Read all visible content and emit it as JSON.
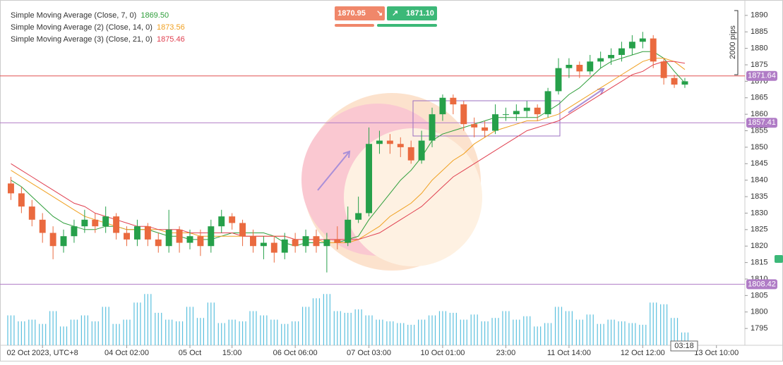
{
  "chart_data": {
    "type": "candlestick",
    "categories": [
      null,
      null,
      null,
      "02 Oct 2023, UTC+8",
      null,
      null,
      null,
      null,
      null,
      null,
      null,
      "04 Oct 02:00",
      null,
      null,
      null,
      null,
      null,
      "05 Oct",
      null,
      null,
      null,
      "15:00",
      null,
      null,
      null,
      null,
      null,
      "06 Oct 06:00",
      null,
      null,
      null,
      null,
      null,
      null,
      "07 Oct 03:00",
      null,
      null,
      null,
      null,
      null,
      null,
      "10 Oct 01:00",
      null,
      null,
      null,
      null,
      null,
      "23:00",
      null,
      null,
      null,
      null,
      null,
      "11 Oct 14:00",
      null,
      null,
      null,
      null,
      null,
      null,
      "12 Oct 12:00",
      null,
      null,
      null,
      null,
      null,
      null,
      "13 Oct 10:00",
      null,
      null
    ],
    "open": [
      1839,
      1836,
      1832,
      1828,
      1824,
      1820,
      1823,
      1826,
      1828,
      1826,
      1829,
      1824,
      1822,
      1826,
      1822,
      1820,
      1825,
      1821,
      1823,
      1820,
      1826,
      1829,
      1827,
      1823,
      1820,
      1821,
      1818,
      1822,
      1820,
      1823,
      1820,
      1822,
      1821,
      1828,
      1830,
      1851,
      1852,
      1851,
      1850,
      1846,
      1852,
      1860,
      1865,
      1863,
      1857,
      1856,
      1855,
      1860,
      1860,
      1861,
      1862,
      1860,
      1867,
      1874,
      1875,
      1873,
      1876,
      1877,
      1878,
      1880,
      1882,
      1883,
      1876,
      1871,
      1869,
      null,
      null,
      null,
      null,
      null
    ],
    "high": [
      1841,
      1838,
      1834,
      1830,
      1826,
      1825,
      1828,
      1831,
      1830,
      1832,
      1830,
      1826,
      1828,
      1827,
      1824,
      1831,
      1826,
      1825,
      1825,
      1828,
      1831,
      1830,
      1828,
      1825,
      1823,
      1823,
      1824,
      1824,
      1825,
      1825,
      1824,
      1826,
      1832,
      1835,
      1856,
      1855,
      1854,
      1853,
      1852,
      1855,
      1862,
      1866,
      1866,
      1864,
      1859,
      1858,
      1863,
      1862,
      1863,
      1864,
      1863,
      1868,
      1877,
      1877,
      1876,
      1878,
      1879,
      1880,
      1882,
      1884,
      1885,
      1884,
      1877,
      1872,
      1871,
      null,
      null,
      null,
      null,
      null
    ],
    "low": [
      1834,
      1830,
      1826,
      1821,
      1816,
      1818,
      1821,
      1824,
      1824,
      1824,
      1822,
      1820,
      1820,
      1820,
      1818,
      1818,
      1818,
      1819,
      1817,
      1818,
      1824,
      1825,
      1820,
      1818,
      1816,
      1815,
      1816,
      1818,
      1818,
      1818,
      1812,
      1819,
      1820,
      1827,
      1829,
      1848,
      1848,
      1847,
      1845,
      1845,
      1850,
      1858,
      1860,
      1855,
      1853,
      1853,
      1854,
      1858,
      1858,
      1859,
      1858,
      1859,
      1866,
      1871,
      1871,
      1872,
      1874,
      1875,
      1876,
      1878,
      1880,
      1874,
      1869,
      1868,
      1868,
      null,
      null,
      null,
      null,
      null
    ],
    "close": [
      1836,
      1832,
      1828,
      1824,
      1820,
      1823,
      1826,
      1828,
      1826,
      1829,
      1824,
      1822,
      1826,
      1822,
      1820,
      1825,
      1821,
      1823,
      1820,
      1826,
      1829,
      1827,
      1823,
      1820,
      1821,
      1818,
      1822,
      1820,
      1823,
      1820,
      1822,
      1821,
      1828,
      1830,
      1851,
      1852,
      1851,
      1850,
      1846,
      1852,
      1860,
      1865,
      1863,
      1857,
      1856,
      1855,
      1860,
      1860,
      1861,
      1862,
      1860,
      1867,
      1874,
      1875,
      1873,
      1876,
      1877,
      1878,
      1880,
      1882,
      1883,
      1876,
      1871,
      1869,
      1870,
      null,
      null,
      null,
      null,
      null
    ],
    "up_color": "#26a04a",
    "down_color": "#ea6a3f",
    "ylim": [
      1789.9,
      1893.6
    ],
    "yticks": [
      1795,
      1800,
      1805,
      1810,
      1815,
      1820,
      1825,
      1830,
      1835,
      1840,
      1845,
      1850,
      1855,
      1860,
      1865,
      1870,
      1875,
      1880,
      1885,
      1890
    ],
    "series": [
      {
        "name": "Simple Moving Average (Close, 7, 0)",
        "legend_value": "1869.50",
        "color": "#2e9e3a",
        "values": [
          1840,
          1838,
          1835,
          1832,
          1829,
          1827,
          1826,
          1825,
          1825,
          1826,
          1826,
          1825,
          1825,
          1825,
          1824,
          1823,
          1823,
          1822,
          1822,
          1822,
          1823,
          1824,
          1824,
          1824,
          1824,
          1823,
          1821,
          1820,
          1821,
          1821,
          1821,
          1821,
          1822,
          1823,
          1828,
          1832,
          1836,
          1840,
          1843,
          1847,
          1852,
          1854,
          1855,
          1856,
          1857,
          1858,
          1859,
          1859,
          1859,
          1859,
          1859,
          1861,
          1863,
          1866,
          1868,
          1871,
          1874,
          1876,
          1877,
          1878,
          1879,
          1879,
          1877,
          1873,
          1869.5,
          null,
          null,
          null,
          null,
          null
        ]
      },
      {
        "name": "Simple Moving Average (2) (Close, 14, 0)",
        "legend_value": "1873.56",
        "color": "#f0a020",
        "values": [
          1843,
          1841,
          1839,
          1837,
          1835,
          1833,
          1831,
          1829,
          1828,
          1827,
          1826,
          1825,
          1825,
          1825,
          1825,
          1824,
          1824,
          1824,
          1823,
          1823,
          1823,
          1823,
          1823,
          1823,
          1823,
          1823,
          1823,
          1822,
          1822,
          1822,
          1821,
          1821,
          1821,
          1822,
          1824,
          1826,
          1829,
          1831,
          1833,
          1836,
          1840,
          1843,
          1846,
          1848,
          1851,
          1853,
          1855,
          1856,
          1857,
          1858,
          1858,
          1859,
          1860,
          1862,
          1864,
          1866,
          1868,
          1870,
          1872,
          1874,
          1876,
          1877,
          1877,
          1876,
          1873.56,
          null,
          null,
          null,
          null,
          null
        ]
      },
      {
        "name": "Simple Moving Average (3) (Close, 21, 0)",
        "legend_value": "1875.46",
        "color": "#e04050",
        "values": [
          1845,
          1843,
          1841,
          1839,
          1837,
          1835,
          1833,
          1832,
          1830,
          1829,
          1828,
          1827,
          1826,
          1826,
          1825,
          1825,
          1825,
          1824,
          1824,
          1824,
          1824,
          1824,
          1823,
          1823,
          1823,
          1823,
          1823,
          1822,
          1822,
          1822,
          1822,
          1822,
          1822,
          1822,
          1823,
          1824,
          1826,
          1828,
          1830,
          1832,
          1835,
          1838,
          1841,
          1843,
          1845,
          1847,
          1849,
          1851,
          1853,
          1855,
          1856,
          1857,
          1858,
          1860,
          1862,
          1864,
          1866,
          1868,
          1870,
          1872,
          1873,
          1875,
          1876,
          1876,
          1875.46,
          null,
          null,
          null,
          null,
          null
        ]
      }
    ],
    "volume": {
      "color": "#5bc0de",
      "y2lim": [
        0,
        400
      ],
      "values": [
        35,
        28,
        30,
        25,
        40,
        22,
        30,
        35,
        28,
        45,
        25,
        30,
        50,
        60,
        38,
        30,
        28,
        45,
        32,
        50,
        26,
        30,
        28,
        40,
        35,
        30,
        25,
        28,
        45,
        55,
        60,
        40,
        38,
        42,
        35,
        30,
        28,
        26,
        24,
        30,
        35,
        40,
        38,
        30,
        36,
        28,
        32,
        40,
        30,
        34,
        22,
        26,
        45,
        40,
        30,
        36,
        25,
        30,
        28,
        26,
        24,
        50,
        48,
        32,
        15,
        null,
        null,
        null,
        null,
        null
      ]
    },
    "levels": [
      {
        "value": 1871.64,
        "color": "#e05050"
      },
      {
        "value": 1857.41,
        "color": "#b07cc6"
      },
      {
        "value": 1808.42,
        "color": "#b07cc6"
      }
    ],
    "trade_panel": {
      "sell": "1870.95",
      "buy": "1871.10"
    },
    "pips_label": "2000 pips",
    "time_label": "03:18"
  }
}
